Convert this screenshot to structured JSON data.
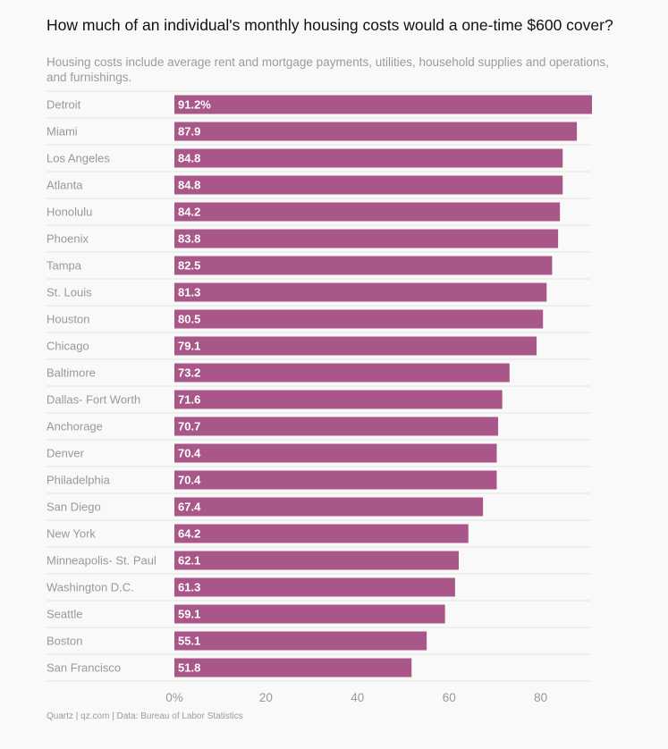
{
  "title": "How much of an individual's monthly housing costs would a one-time $600 cover?",
  "subtitle": "Housing costs include average rent and mortgage payments, utilities, household supplies and operations, and furnishings.",
  "footer": "Quartz | qz.com | Data: Bureau of Labor Statistics",
  "colors": {
    "bar": "#a95788",
    "grid": "#e3e3e3",
    "label": "#999999",
    "value": "#ffffff"
  },
  "chart_data": {
    "type": "bar",
    "orientation": "horizontal",
    "categories": [
      "Detroit",
      "Miami",
      "Los Angeles",
      "Atlanta",
      "Honolulu",
      "Phoenix",
      "Tampa",
      "St. Louis",
      "Houston",
      "Chicago",
      "Baltimore",
      "Dallas- Fort Worth",
      "Anchorage",
      "Denver",
      "Philadelphia",
      "San Diego",
      "New York",
      "Minneapolis- St. Paul",
      "Washington D.C.",
      "Seattle",
      "Boston",
      "San Francisco"
    ],
    "values": [
      91.2,
      87.9,
      84.8,
      84.8,
      84.2,
      83.8,
      82.5,
      81.3,
      80.5,
      79.1,
      73.2,
      71.6,
      70.7,
      70.4,
      70.4,
      67.4,
      64.2,
      62.1,
      61.3,
      59.1,
      55.1,
      51.8
    ],
    "value_labels": [
      "91.2%",
      "87.9",
      "84.8",
      "84.8",
      "84.2",
      "83.8",
      "82.5",
      "81.3",
      "80.5",
      "79.1",
      "73.2",
      "71.6",
      "70.7",
      "70.4",
      "70.4",
      "67.4",
      "64.2",
      "62.1",
      "61.3",
      "59.1",
      "55.1",
      "51.8"
    ],
    "xlim": [
      0,
      91.2
    ],
    "xticks": [
      0,
      20,
      40,
      60,
      80
    ],
    "xtick_labels": [
      "0%",
      "20",
      "40",
      "60",
      "80"
    ],
    "grid": true
  }
}
